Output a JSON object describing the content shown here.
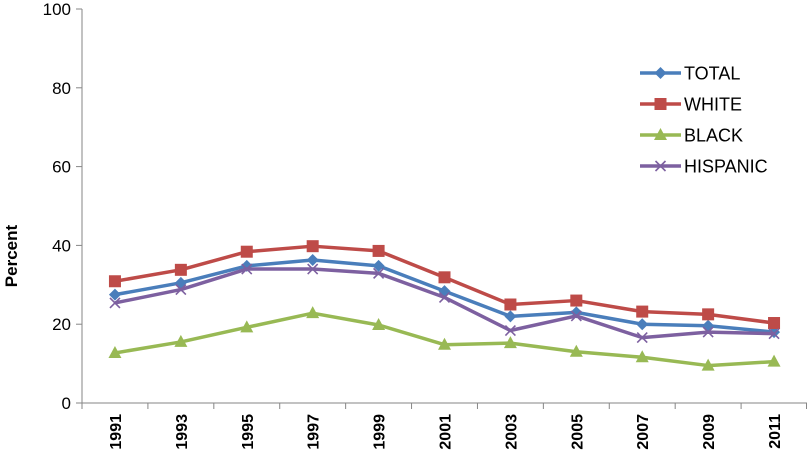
{
  "chart_data": {
    "type": "line",
    "title": "",
    "xlabel": "",
    "ylabel": "Percent",
    "ylim": [
      0,
      100
    ],
    "yticks": [
      0,
      20,
      40,
      60,
      80,
      100
    ],
    "grid": false,
    "legend_position": "right",
    "categories": [
      "1991",
      "1993",
      "1995",
      "1997",
      "1999",
      "2001",
      "2003",
      "2005",
      "2007",
      "2009",
      "2011"
    ],
    "series": [
      {
        "name": "TOTAL",
        "color": "#4a7ebb",
        "marker": "diamond",
        "values": [
          27.5,
          30.5,
          34.8,
          36.3,
          34.8,
          28.4,
          22.0,
          23.0,
          20.0,
          19.6,
          18.0
        ]
      },
      {
        "name": "WHITE",
        "color": "#be4b48",
        "marker": "square",
        "values": [
          30.9,
          33.8,
          38.4,
          39.8,
          38.6,
          31.9,
          25.0,
          26.0,
          23.2,
          22.5,
          20.3
        ]
      },
      {
        "name": "BLACK",
        "color": "#98b954",
        "marker": "triangle",
        "values": [
          12.7,
          15.5,
          19.2,
          22.8,
          19.8,
          14.8,
          15.2,
          13.0,
          11.6,
          9.5,
          10.5
        ]
      },
      {
        "name": "HISPANIC",
        "color": "#7d60a0",
        "marker": "x",
        "values": [
          25.4,
          28.8,
          34.0,
          34.0,
          32.9,
          26.8,
          18.4,
          22.1,
          16.6,
          18.0,
          17.6
        ]
      }
    ]
  }
}
